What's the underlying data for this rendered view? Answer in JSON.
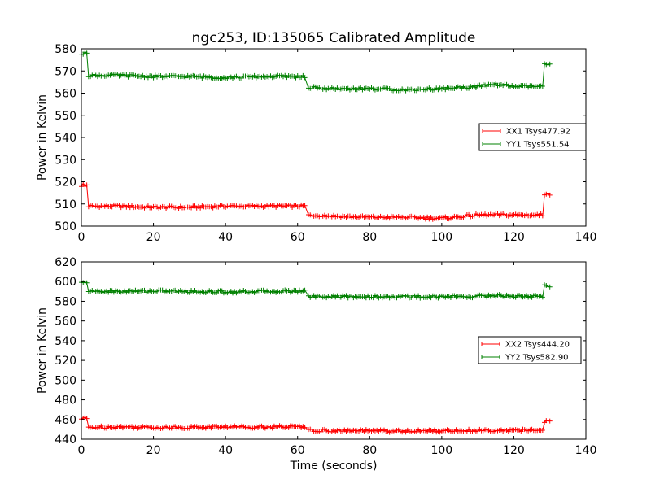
{
  "chart_data": [
    {
      "type": "line",
      "title": "ngc253, ID:135065 Calibrated Amplitude",
      "xlabel": "",
      "ylabel": "Power in Kelvin",
      "xlim": [
        0,
        140
      ],
      "ylim": [
        500,
        580
      ],
      "xticks": [
        0,
        20,
        40,
        60,
        80,
        100,
        120,
        140
      ],
      "yticks": [
        500,
        510,
        520,
        530,
        540,
        550,
        560,
        570,
        580
      ],
      "grid": false,
      "legend_position": "center-right",
      "series": [
        {
          "name": "XX1 Tsys477.92",
          "color": "#ff0000",
          "marker": "+",
          "segments": [
            {
              "x_range": [
                0,
                1.5
              ],
              "y": 518.5
            },
            {
              "x_range": [
                2,
                62
              ],
              "y_points": [
                [
                  2,
                  509
                ],
                [
                  10,
                  509
                ],
                [
                  20,
                  508.5
                ],
                [
                  30,
                  508.5
                ],
                [
                  40,
                  509
                ],
                [
                  50,
                  509
                ],
                [
                  62,
                  509
                ]
              ]
            },
            {
              "x_range": [
                63,
                128
              ],
              "y_points": [
                [
                  63,
                  505
                ],
                [
                  70,
                  504.5
                ],
                [
                  80,
                  504
                ],
                [
                  90,
                  504
                ],
                [
                  100,
                  503.5
                ],
                [
                  110,
                  505
                ],
                [
                  120,
                  505
                ],
                [
                  128,
                  505
                ]
              ]
            },
            {
              "x_range": [
                128.5,
                130
              ],
              "y": 514.5
            }
          ]
        },
        {
          "name": "YY1 Tsys551.54",
          "color": "#008000",
          "marker": "+",
          "segments": [
            {
              "x_range": [
                0,
                1.5
              ],
              "y": 578
            },
            {
              "x_range": [
                2,
                62
              ],
              "y_points": [
                [
                  2,
                  568
                ],
                [
                  10,
                  568
                ],
                [
                  20,
                  567.5
                ],
                [
                  30,
                  567.5
                ],
                [
                  40,
                  567
                ],
                [
                  50,
                  567.5
                ],
                [
                  62,
                  567.5
                ]
              ]
            },
            {
              "x_range": [
                63,
                128
              ],
              "y_points": [
                [
                  63,
                  562.5
                ],
                [
                  70,
                  562
                ],
                [
                  80,
                  562
                ],
                [
                  90,
                  561.5
                ],
                [
                  100,
                  562
                ],
                [
                  110,
                  563
                ],
                [
                  115,
                  564
                ],
                [
                  120,
                  563
                ],
                [
                  128,
                  563
                ]
              ]
            },
            {
              "x_range": [
                128.5,
                130
              ],
              "y": 573
            }
          ]
        }
      ]
    },
    {
      "type": "line",
      "title": "",
      "xlabel": "Time (seconds)",
      "ylabel": "Power in Kelvin",
      "xlim": [
        0,
        140
      ],
      "ylim": [
        440,
        620
      ],
      "xticks": [
        0,
        20,
        40,
        60,
        80,
        100,
        120,
        140
      ],
      "yticks": [
        440,
        460,
        480,
        500,
        520,
        540,
        560,
        580,
        600,
        620
      ],
      "grid": false,
      "legend_position": "center-right",
      "series": [
        {
          "name": "XX2 Tsys444.20",
          "color": "#ff0000",
          "marker": "+",
          "segments": [
            {
              "x_range": [
                0,
                1.5
              ],
              "y": 461
            },
            {
              "x_range": [
                2,
                62
              ],
              "y_points": [
                [
                  2,
                  452
                ],
                [
                  10,
                  452.5
                ],
                [
                  20,
                  452
                ],
                [
                  30,
                  452
                ],
                [
                  40,
                  452.5
                ],
                [
                  50,
                  452.5
                ],
                [
                  62,
                  452.5
                ]
              ]
            },
            {
              "x_range": [
                63,
                128
              ],
              "y_points": [
                [
                  63,
                  449
                ],
                [
                  70,
                  448.5
                ],
                [
                  80,
                  448.5
                ],
                [
                  90,
                  448
                ],
                [
                  100,
                  448.5
                ],
                [
                  110,
                  449
                ],
                [
                  120,
                  449
                ],
                [
                  128,
                  449
                ]
              ]
            },
            {
              "x_range": [
                128.5,
                130
              ],
              "y": 458
            }
          ]
        },
        {
          "name": "YY2 Tsys582.90",
          "color": "#008000",
          "marker": "+",
          "segments": [
            {
              "x_range": [
                0,
                1.5
              ],
              "y": 600
            },
            {
              "x_range": [
                2,
                62
              ],
              "y_points": [
                [
                  2,
                  590
                ],
                [
                  10,
                  590
                ],
                [
                  20,
                  590.5
                ],
                [
                  30,
                  590
                ],
                [
                  40,
                  589.5
                ],
                [
                  50,
                  590
                ],
                [
                  62,
                  590.5
                ]
              ]
            },
            {
              "x_range": [
                63,
                128
              ],
              "y_points": [
                [
                  63,
                  585
                ],
                [
                  70,
                  584.5
                ],
                [
                  80,
                  584.5
                ],
                [
                  90,
                  584.5
                ],
                [
                  100,
                  584.5
                ],
                [
                  110,
                  585
                ],
                [
                  115,
                  586
                ],
                [
                  120,
                  585
                ],
                [
                  128,
                  585
                ]
              ]
            },
            {
              "x_range": [
                128.5,
                130
              ],
              "y": 596
            }
          ]
        }
      ]
    }
  ]
}
